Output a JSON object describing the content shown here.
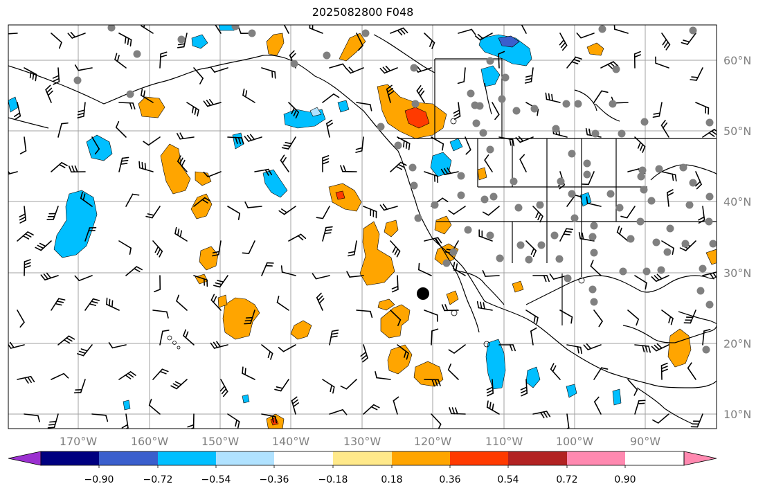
{
  "title": "2025082800 F048",
  "map": {
    "lon_labels": [
      "170°W",
      "160°W",
      "150°W",
      "140°W",
      "130°W",
      "120°W",
      "110°W",
      "100°W",
      "90°W"
    ],
    "lat_labels": [
      "60°N",
      "50°N",
      "40°N",
      "30°N",
      "20°N",
      "10°N"
    ],
    "grid_color": "#a0a0a0",
    "marker": {
      "symbol": "large black dot",
      "lon": "122°W",
      "lat": "27°N"
    }
  },
  "colorbar": {
    "tick_labels": [
      "−0.90",
      "−0.72",
      "−0.54",
      "−0.36",
      "−0.18",
      "0.18",
      "0.36",
      "0.54",
      "0.72",
      "0.90"
    ],
    "colors": [
      "#9b30d0",
      "#000080",
      "#3a5fcd",
      "#00bfff",
      "#b0e2ff",
      "#ffffff",
      "#ffe98a",
      "#ffa500",
      "#ff3a00",
      "#b22222",
      "#ff89b0"
    ]
  }
}
